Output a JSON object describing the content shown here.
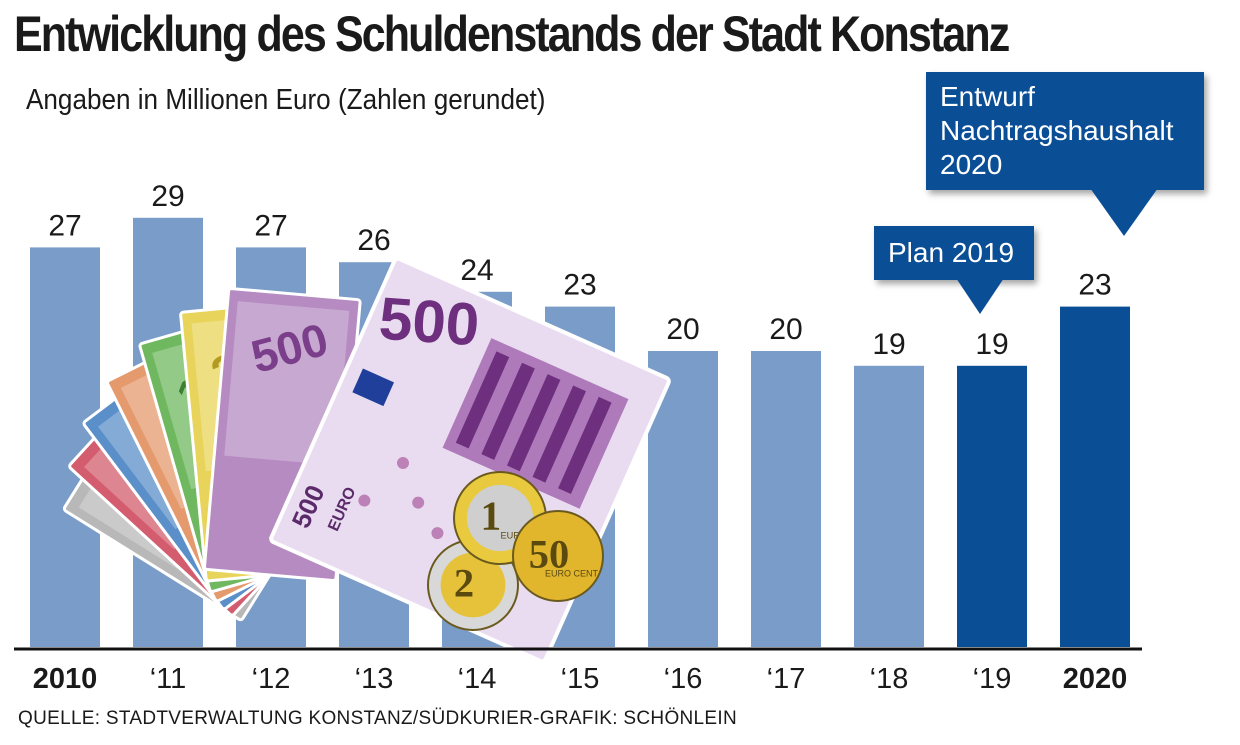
{
  "title": "Entwicklung des Schuldenstands der Stadt Konstanz",
  "subtitle": "Angaben in Millionen Euro (Zahlen gerundet)",
  "source": "QUELLE: STADTVERWALTUNG KONSTANZ/SÜDKURIER-GRAFIK: SCHÖNLEIN",
  "callouts": {
    "plan": "Plan 2019",
    "entwurf": [
      "Entwurf",
      "Nachtragshaushalt",
      "2020"
    ]
  },
  "colors": {
    "bar_regular": "#7a9cc8",
    "bar_highlight": "#0a4e96",
    "text": "#1a1a1a"
  },
  "illustration": {
    "banknotes": [
      "5",
      "10",
      "20",
      "50",
      "100",
      "200",
      "500"
    ],
    "coins": [
      "1",
      "2",
      "50"
    ],
    "currency_word": "EURO",
    "coin_text_1": "EURO",
    "coin_text_50": "EURO CENT"
  },
  "chart_data": {
    "type": "bar",
    "categories": [
      "2010",
      "‘11",
      "‘12",
      "‘13",
      "‘14",
      "‘15",
      "‘16",
      "‘17",
      "‘18",
      "‘19",
      "2020"
    ],
    "values": [
      27,
      29,
      27,
      26,
      24,
      23,
      20,
      20,
      19,
      19,
      23
    ],
    "data_labels": [
      "27",
      "29",
      "27",
      "26",
      "24",
      "23",
      "20",
      "20",
      "19",
      "19",
      "23"
    ],
    "highlighted": [
      false,
      false,
      false,
      false,
      false,
      false,
      false,
      false,
      false,
      true,
      true
    ],
    "bold_categories": [
      true,
      false,
      false,
      false,
      false,
      false,
      false,
      false,
      false,
      false,
      true
    ],
    "title": "Entwicklung des Schuldenstands der Stadt Konstanz",
    "xlabel": "",
    "ylabel": "",
    "ylim": [
      0,
      32
    ],
    "grid": false
  }
}
